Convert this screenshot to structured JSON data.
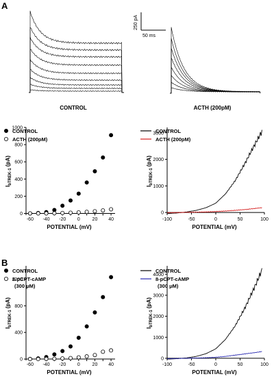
{
  "panel_a_label": "A",
  "panel_b_label": "B",
  "scale_bar": {
    "current": "250 pA",
    "time": "50 ms"
  },
  "trace_labels": {
    "control": "CONTROL",
    "acth": "ACTH (200pM)"
  },
  "colors": {
    "black": "#000000",
    "red": "#d62020",
    "blue": "#2a2ab0"
  },
  "chart_data": [
    {
      "id": "A-scatter",
      "type": "scatter",
      "xlabel": "POTENTIAL (mV)",
      "ylabel_main": "I",
      "ylabel_sub": "bTREK-1",
      "ylabel_unit": " (pA)",
      "xlim": [
        -65,
        45
      ],
      "ylim": [
        -20,
        1000
      ],
      "xticks": [
        -60,
        -50,
        -40,
        -30,
        -20,
        -10,
        0,
        10,
        20,
        30,
        40
      ],
      "xticklabels": [
        "-60",
        "-40",
        "-20",
        "0",
        "20",
        "40"
      ],
      "yticks": [
        0,
        200,
        400,
        600,
        800,
        1000
      ],
      "legend": "top-left",
      "series": [
        {
          "name": "CONTROL",
          "marker": "filled",
          "x": [
            -60,
            -50,
            -40,
            -30,
            -20,
            -10,
            0,
            10,
            20,
            30,
            40
          ],
          "y": [
            0,
            5,
            15,
            40,
            90,
            150,
            230,
            360,
            490,
            650,
            910
          ]
        },
        {
          "name": "ACTH (200pM)",
          "marker": "open",
          "x": [
            -60,
            -50,
            -40,
            -30,
            -20,
            -10,
            0,
            10,
            20,
            30,
            40
          ],
          "y": [
            0,
            0,
            0,
            2,
            5,
            8,
            12,
            18,
            25,
            35,
            48
          ]
        }
      ]
    },
    {
      "id": "A-ramp",
      "type": "line",
      "xlabel": "POTENTIAL (mV)",
      "ylabel_main": "I",
      "ylabel_sub": "bTREK-1",
      "ylabel_unit": " (pA)",
      "xlim": [
        -100,
        100
      ],
      "ylim": [
        -100,
        3200
      ],
      "xticks": [
        -100,
        -50,
        0,
        50,
        100
      ],
      "yticks": [
        0,
        1000,
        2000,
        3000
      ],
      "legend": "top-left",
      "series": [
        {
          "name": "CONTROL",
          "color": "#000000",
          "x": [
            -100,
            -80,
            -60,
            -40,
            -20,
            0,
            20,
            40,
            60,
            80,
            95
          ],
          "y": [
            -40,
            -20,
            20,
            80,
            180,
            350,
            700,
            1200,
            1850,
            2550,
            3050
          ]
        },
        {
          "name": "ACTH (200pM)",
          "color": "#d62020",
          "x": [
            -100,
            -60,
            -20,
            0,
            20,
            40,
            60,
            80,
            95
          ],
          "y": [
            -10,
            5,
            20,
            35,
            55,
            80,
            110,
            150,
            180
          ]
        }
      ]
    },
    {
      "id": "B-scatter",
      "type": "scatter",
      "xlabel": "POTENTIAL (mV)",
      "ylabel_main": "I",
      "ylabel_sub": "bTREK-1",
      "ylabel_unit": " (pA)",
      "xlim": [
        -65,
        45
      ],
      "ylim": [
        -20,
        1400
      ],
      "xticks": [
        -60,
        -50,
        -40,
        -30,
        -20,
        -10,
        0,
        10,
        20,
        30,
        40
      ],
      "xticklabels": [
        "-60",
        "-40",
        "-20",
        "0",
        "20",
        "40"
      ],
      "yticks": [
        0,
        400,
        800,
        1200
      ],
      "legend": "top-left",
      "series": [
        {
          "name": "CONTROL",
          "marker": "filled",
          "x": [
            -60,
            -50,
            -40,
            -30,
            -20,
            -10,
            0,
            10,
            20,
            30,
            40
          ],
          "y": [
            0,
            10,
            30,
            70,
            120,
            190,
            320,
            490,
            700,
            930,
            1230
          ]
        },
        {
          "name": "8-pCPT-cAMP (300 μM)",
          "marker": "open",
          "x": [
            -60,
            -50,
            -40,
            -30,
            -20,
            -10,
            0,
            10,
            20,
            30,
            40
          ],
          "y": [
            0,
            0,
            2,
            5,
            10,
            15,
            25,
            40,
            60,
            110,
            130
          ]
        }
      ]
    },
    {
      "id": "B-ramp",
      "type": "line",
      "xlabel": "POTENTIAL (mV)",
      "ylabel_main": "I",
      "ylabel_sub": "bTREK-1",
      "ylabel_unit": " (pA)",
      "xlim": [
        -100,
        100
      ],
      "ylim": [
        -100,
        4400
      ],
      "xticks": [
        -100,
        -50,
        0,
        50,
        100
      ],
      "yticks": [
        0,
        1000,
        2000,
        3000,
        4000
      ],
      "legend": "top-left",
      "series": [
        {
          "name": "CONTROL",
          "color": "#000000",
          "x": [
            -100,
            -80,
            -60,
            -40,
            -20,
            0,
            20,
            40,
            60,
            80,
            95
          ],
          "y": [
            -40,
            -20,
            20,
            90,
            220,
            450,
            900,
            1550,
            2400,
            3400,
            4200
          ]
        },
        {
          "name": "8-pCPT-cAMP (300 μM)",
          "color": "#2a2ab0",
          "x": [
            -100,
            -60,
            -20,
            0,
            20,
            40,
            60,
            80,
            95
          ],
          "y": [
            -20,
            0,
            25,
            50,
            90,
            150,
            210,
            270,
            320
          ]
        }
      ]
    }
  ]
}
